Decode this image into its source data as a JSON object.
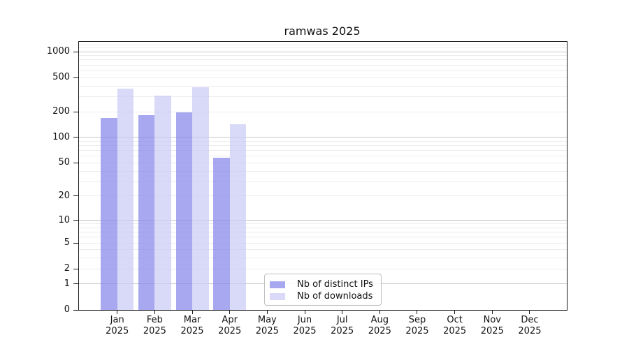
{
  "title": "ramwas 2025",
  "legend": {
    "items": [
      {
        "label": "Nb of distinct IPs",
        "color": "#a8a8f0"
      },
      {
        "label": "Nb of downloads",
        "color": "#dadaf8"
      }
    ]
  },
  "colors": {
    "bar_ips_base": "#8686eb",
    "bar_downloads_base": "#cbcbf5",
    "bar_alpha": 0.72,
    "grid_minor": "#ececec",
    "grid_major": "#c6c6c6",
    "axis": "#1a1a1a",
    "background": "#ffffff"
  },
  "chart_data": {
    "type": "bar",
    "title": "ramwas 2025",
    "xlabel": "",
    "ylabel": "",
    "scale": "log1p",
    "ylim": [
      0,
      1300
    ],
    "yticks": [
      0,
      1,
      2,
      5,
      10,
      20,
      50,
      100,
      200,
      500,
      1000
    ],
    "grid": "horizontal, minor lines each 2-9 per decade, major lines at 1/10/100/1000",
    "legend_position": "lower center inside plot",
    "categories": [
      {
        "month": "Jan",
        "year": "2025"
      },
      {
        "month": "Feb",
        "year": "2025"
      },
      {
        "month": "Mar",
        "year": "2025"
      },
      {
        "month": "Apr",
        "year": "2025"
      },
      {
        "month": "May",
        "year": "2025"
      },
      {
        "month": "Jun",
        "year": "2025"
      },
      {
        "month": "Jul",
        "year": "2025"
      },
      {
        "month": "Aug",
        "year": "2025"
      },
      {
        "month": "Sep",
        "year": "2025"
      },
      {
        "month": "Oct",
        "year": "2025"
      },
      {
        "month": "Nov",
        "year": "2025"
      },
      {
        "month": "Dec",
        "year": "2025"
      }
    ],
    "series": [
      {
        "name": "Nb of distinct IPs",
        "values": [
          168,
          182,
          196,
          58,
          null,
          null,
          null,
          null,
          null,
          null,
          null,
          null
        ]
      },
      {
        "name": "Nb of downloads",
        "values": [
          370,
          308,
          388,
          142,
          null,
          null,
          null,
          null,
          null,
          null,
          null,
          null
        ]
      }
    ]
  }
}
